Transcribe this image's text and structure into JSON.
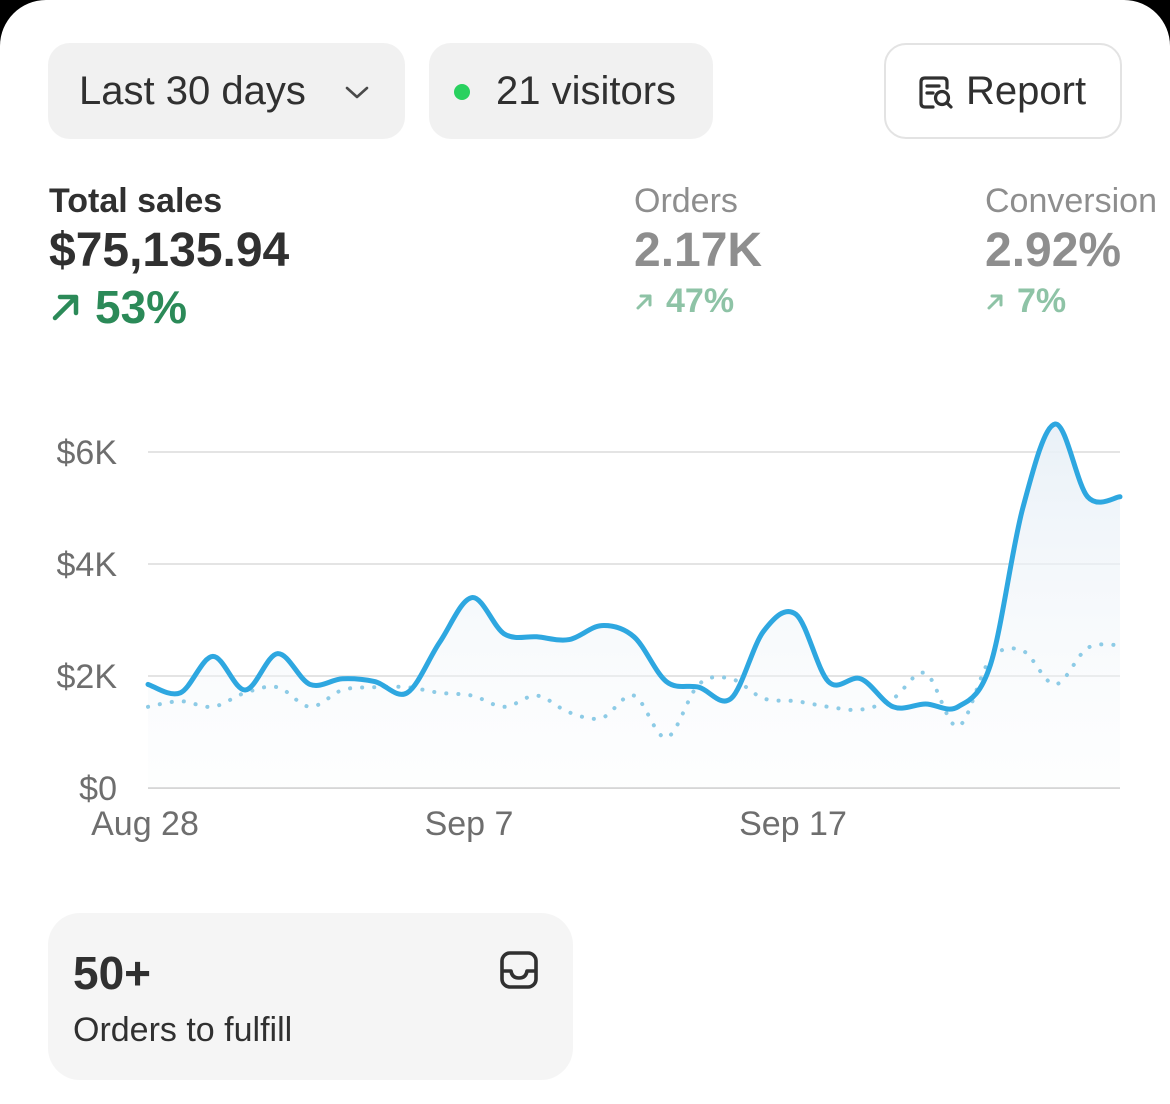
{
  "filters": {
    "date_range_label": "Last 30 days",
    "visitors_label": "21 visitors",
    "report_label": "Report"
  },
  "metrics": {
    "total_sales": {
      "label": "Total sales",
      "value": "$75,135.94",
      "change": "53%"
    },
    "orders": {
      "label": "Orders",
      "value": "2.17K",
      "change": "47%"
    },
    "conversion": {
      "label": "Conversion",
      "value": "2.92%",
      "change": "7%"
    }
  },
  "colors": {
    "primary_series": "#2ea7e0",
    "comparison_series": "#8dcbe6",
    "positive_change": "#2b8a58",
    "visitor_dot": "#29d15f"
  },
  "icons": {
    "range_dropdown": "chevron-down-icon",
    "visitors_status": "live-dot-icon",
    "report": "report-search-icon",
    "fulfill": "inbox-tray-icon",
    "change": "arrow-up-right-icon"
  },
  "chart_data": {
    "type": "line",
    "x": [
      "Aug 28",
      "Aug 29",
      "Aug 30",
      "Aug 31",
      "Sep 1",
      "Sep 2",
      "Sep 3",
      "Sep 4",
      "Sep 5",
      "Sep 6",
      "Sep 7",
      "Sep 8",
      "Sep 9",
      "Sep 10",
      "Sep 11",
      "Sep 12",
      "Sep 13",
      "Sep 14",
      "Sep 15",
      "Sep 16",
      "Sep 17",
      "Sep 18",
      "Sep 19",
      "Sep 20",
      "Sep 21",
      "Sep 22",
      "Sep 23",
      "Sep 24",
      "Sep 25",
      "Sep 26",
      "Sep 27"
    ],
    "x_tick_labels": [
      "Aug 28",
      "Sep 7",
      "Sep 17"
    ],
    "y_tick_labels": [
      "$0",
      "$2K",
      "$4K",
      "$6K"
    ],
    "ylim": [
      0,
      6000
    ],
    "grid": true,
    "series": [
      {
        "style": "solid",
        "values": [
          1850,
          1700,
          2350,
          1750,
          2400,
          1850,
          1950,
          1900,
          1700,
          2600,
          3400,
          2750,
          2700,
          2650,
          2900,
          2700,
          1900,
          1800,
          1600,
          2800,
          3100,
          1900,
          1950,
          1450,
          1500,
          1450,
          2200,
          5000,
          6500,
          5200,
          5200
        ]
      },
      {
        "style": "dotted",
        "values": [
          1450,
          1550,
          1450,
          1700,
          1800,
          1450,
          1750,
          1800,
          1800,
          1700,
          1650,
          1450,
          1650,
          1350,
          1250,
          1650,
          900,
          1850,
          1950,
          1600,
          1550,
          1450,
          1400,
          1600,
          2050,
          1100,
          2300,
          2450,
          1850,
          2500,
          2550
        ]
      }
    ]
  },
  "fulfill_card": {
    "count": "50+",
    "label": "Orders to fulfill"
  }
}
